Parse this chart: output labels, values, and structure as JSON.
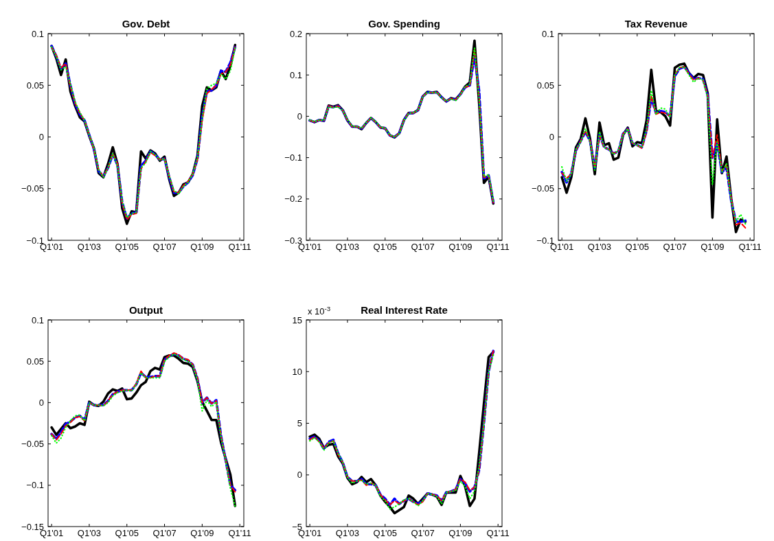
{
  "chart_data": [
    {
      "type": "line",
      "title": "Gov. Debt",
      "categories": [
        "Q1'01",
        null,
        null,
        null,
        null,
        null,
        null,
        null,
        "Q1'03",
        null,
        null,
        null,
        null,
        null,
        null,
        null,
        "Q1'05",
        null,
        null,
        null,
        null,
        null,
        null,
        null,
        "Q1'07",
        null,
        null,
        null,
        null,
        null,
        null,
        null,
        "Q1'09",
        null,
        null,
        null,
        null,
        null,
        null,
        null,
        "Q1'11"
      ],
      "ylim": [
        -0.1,
        0.1
      ],
      "yticks": [
        -0.1,
        -0.05,
        0,
        0.05,
        0.1
      ],
      "series": [
        {
          "color": "#000000",
          "line_style": "solid",
          "values": [
            0.088,
            0.076,
            0.06,
            0.075,
            0.044,
            0.03,
            0.019,
            0.015,
            0.001,
            -0.011,
            -0.035,
            -0.039,
            -0.026,
            -0.01,
            -0.026,
            -0.069,
            -0.084,
            -0.072,
            -0.073,
            -0.014,
            -0.021,
            -0.013,
            -0.016,
            -0.023,
            -0.019,
            -0.041,
            -0.057,
            -0.054,
            -0.046,
            -0.044,
            -0.036,
            -0.018,
            0.03,
            0.048,
            0.045,
            0.048,
            0.064,
            0.056,
            0.069,
            0.089,
            null
          ]
        },
        {
          "color": "#00ff00",
          "line_style": "dotted",
          "values": [
            0.087,
            0.078,
            0.065,
            0.068,
            0.051,
            0.034,
            0.024,
            0.016,
            0.002,
            -0.011,
            -0.032,
            -0.039,
            -0.03,
            -0.016,
            -0.028,
            -0.062,
            -0.078,
            -0.074,
            -0.073,
            -0.03,
            -0.025,
            -0.014,
            -0.017,
            -0.022,
            -0.021,
            -0.038,
            -0.052,
            -0.055,
            -0.048,
            -0.044,
            -0.036,
            -0.02,
            0.018,
            0.047,
            0.05,
            0.052,
            0.061,
            0.056,
            0.064,
            0.086,
            null
          ]
        },
        {
          "color": "#0000ff",
          "line_style": "dashed",
          "values": [
            0.088,
            0.078,
            0.066,
            0.071,
            0.05,
            0.032,
            0.022,
            0.016,
            0.002,
            -0.012,
            -0.033,
            -0.038,
            -0.03,
            -0.017,
            -0.027,
            -0.063,
            -0.079,
            -0.074,
            -0.073,
            -0.028,
            -0.023,
            -0.014,
            -0.017,
            -0.022,
            -0.021,
            -0.039,
            -0.054,
            -0.054,
            -0.048,
            -0.044,
            -0.037,
            -0.021,
            0.02,
            0.044,
            0.045,
            0.05,
            0.064,
            0.063,
            0.072,
            0.087,
            null
          ]
        },
        {
          "color": "#ff0000",
          "line_style": "dashed",
          "values": [
            0.087,
            0.079,
            0.067,
            0.071,
            0.049,
            0.033,
            0.023,
            0.016,
            0.002,
            -0.012,
            -0.032,
            -0.038,
            -0.03,
            -0.016,
            -0.026,
            -0.064,
            -0.08,
            -0.075,
            -0.074,
            -0.031,
            -0.024,
            -0.015,
            -0.018,
            -0.022,
            -0.021,
            -0.038,
            -0.053,
            -0.054,
            -0.047,
            -0.043,
            -0.036,
            -0.022,
            0.016,
            0.042,
            0.046,
            0.05,
            0.061,
            0.063,
            0.07,
            0.087,
            null
          ]
        }
      ]
    },
    {
      "type": "line",
      "title": "Gov. Spending",
      "categories": [
        "Q1'01",
        null,
        null,
        null,
        null,
        null,
        null,
        null,
        "Q1'03",
        null,
        null,
        null,
        null,
        null,
        null,
        null,
        "Q1'05",
        null,
        null,
        null,
        null,
        null,
        null,
        null,
        "Q1'07",
        null,
        null,
        null,
        null,
        null,
        null,
        null,
        "Q1'09",
        null,
        null,
        null,
        null,
        null,
        null,
        null,
        "Q1'11"
      ],
      "ylim": [
        -0.3,
        0.2
      ],
      "yticks": [
        -0.3,
        -0.2,
        -0.1,
        0,
        0.1,
        0.2
      ],
      "series": [
        {
          "color": "#000000",
          "line_style": "solid",
          "values": [
            -0.01,
            -0.014,
            -0.009,
            -0.011,
            0.026,
            0.023,
            0.027,
            0.015,
            -0.01,
            -0.025,
            -0.025,
            -0.031,
            -0.016,
            -0.004,
            -0.014,
            -0.027,
            -0.029,
            -0.046,
            -0.051,
            -0.041,
            -0.009,
            0.008,
            0.008,
            0.015,
            0.048,
            0.059,
            0.057,
            0.059,
            0.046,
            0.036,
            0.044,
            0.041,
            0.054,
            0.072,
            0.082,
            0.183,
            0.029,
            -0.161,
            -0.146,
            -0.211,
            null
          ]
        },
        {
          "color": "#00ff00",
          "line_style": "dotted",
          "values": [
            -0.009,
            -0.013,
            -0.009,
            -0.01,
            0.023,
            0.021,
            0.023,
            0.014,
            -0.008,
            -0.024,
            -0.025,
            -0.029,
            -0.015,
            -0.004,
            -0.013,
            -0.026,
            -0.029,
            -0.045,
            -0.05,
            -0.042,
            -0.01,
            0.007,
            0.009,
            0.015,
            0.047,
            0.058,
            0.057,
            0.058,
            0.045,
            0.037,
            0.042,
            0.038,
            0.052,
            0.072,
            0.078,
            0.165,
            0.04,
            -0.146,
            -0.141,
            -0.205,
            null
          ]
        },
        {
          "color": "#0000ff",
          "line_style": "dashed",
          "values": [
            -0.01,
            -0.014,
            -0.009,
            -0.011,
            0.024,
            0.022,
            0.025,
            0.014,
            -0.01,
            -0.025,
            -0.025,
            -0.03,
            -0.016,
            -0.004,
            -0.014,
            -0.027,
            -0.029,
            -0.046,
            -0.05,
            -0.041,
            -0.009,
            0.008,
            0.008,
            0.015,
            0.048,
            0.058,
            0.057,
            0.058,
            0.046,
            0.036,
            0.043,
            0.04,
            0.053,
            0.07,
            0.075,
            0.145,
            0.06,
            -0.15,
            -0.143,
            -0.208,
            null
          ]
        },
        {
          "color": "#ff0000",
          "line_style": "dashed",
          "values": [
            -0.01,
            -0.014,
            -0.009,
            -0.011,
            0.025,
            0.022,
            0.025,
            0.014,
            -0.01,
            -0.025,
            -0.025,
            -0.03,
            -0.016,
            -0.004,
            -0.014,
            -0.027,
            -0.029,
            -0.046,
            -0.05,
            -0.041,
            -0.009,
            0.008,
            0.008,
            0.015,
            0.048,
            0.058,
            0.057,
            0.058,
            0.046,
            0.036,
            0.043,
            0.04,
            0.053,
            0.071,
            0.073,
            0.16,
            0.045,
            -0.148,
            -0.144,
            -0.209,
            null
          ]
        }
      ]
    },
    {
      "type": "line",
      "title": "Tax Revenue",
      "categories": [
        "Q1'01",
        null,
        null,
        null,
        null,
        null,
        null,
        null,
        "Q1'03",
        null,
        null,
        null,
        null,
        null,
        null,
        null,
        "Q1'05",
        null,
        null,
        null,
        null,
        null,
        null,
        null,
        "Q1'07",
        null,
        null,
        null,
        null,
        null,
        null,
        null,
        "Q1'09",
        null,
        null,
        null,
        null,
        null,
        null,
        null,
        "Q1'11"
      ],
      "ylim": [
        -0.1,
        0.1
      ],
      "yticks": [
        -0.1,
        -0.05,
        0,
        0.05,
        0.1
      ],
      "series": [
        {
          "color": "#000000",
          "line_style": "solid",
          "values": [
            -0.039,
            -0.054,
            -0.039,
            -0.01,
            -0.002,
            0.018,
            -0.002,
            -0.036,
            0.014,
            -0.008,
            -0.006,
            -0.022,
            -0.02,
            0.002,
            0.009,
            -0.009,
            -0.005,
            -0.006,
            0.016,
            0.065,
            0.025,
            0.024,
            0.02,
            0.011,
            0.067,
            0.07,
            0.071,
            0.062,
            0.057,
            0.061,
            0.06,
            0.042,
            -0.078,
            0.017,
            -0.035,
            -0.019,
            -0.06,
            -0.092,
            -0.08,
            -0.082,
            null
          ]
        },
        {
          "color": "#00ff00",
          "line_style": "dotted",
          "values": [
            -0.029,
            -0.043,
            -0.036,
            -0.012,
            -0.005,
            0.008,
            -0.005,
            -0.032,
            0.005,
            -0.01,
            -0.012,
            -0.017,
            -0.013,
            0.002,
            0.008,
            -0.006,
            -0.008,
            -0.01,
            0.008,
            0.045,
            0.022,
            0.028,
            0.027,
            0.019,
            0.06,
            0.067,
            0.068,
            0.06,
            0.053,
            0.057,
            0.055,
            0.038,
            -0.046,
            -0.005,
            -0.034,
            -0.026,
            -0.062,
            -0.082,
            -0.075,
            -0.084,
            null
          ]
        },
        {
          "color": "#0000ff",
          "line_style": "dashed",
          "values": [
            -0.034,
            -0.044,
            -0.035,
            -0.013,
            -0.004,
            0.005,
            -0.004,
            -0.03,
            0.002,
            -0.01,
            -0.012,
            -0.016,
            -0.014,
            0.003,
            0.008,
            -0.006,
            -0.008,
            -0.01,
            0.006,
            0.038,
            0.023,
            0.025,
            0.024,
            0.02,
            0.059,
            0.066,
            0.068,
            0.062,
            0.056,
            0.057,
            0.056,
            0.04,
            -0.02,
            -0.006,
            -0.034,
            -0.03,
            -0.062,
            -0.082,
            -0.082,
            -0.081,
            null
          ]
        },
        {
          "color": "#ff0000",
          "line_style": "dashed",
          "values": [
            -0.035,
            -0.04,
            -0.036,
            -0.013,
            -0.004,
            0.006,
            -0.004,
            -0.03,
            0.001,
            -0.01,
            -0.012,
            -0.016,
            -0.014,
            0.003,
            0.008,
            -0.006,
            -0.008,
            -0.011,
            0.005,
            0.04,
            0.022,
            0.024,
            0.023,
            0.02,
            0.06,
            0.067,
            0.068,
            0.061,
            0.055,
            0.057,
            0.055,
            0.04,
            -0.02,
            0.002,
            -0.033,
            -0.028,
            -0.06,
            -0.085,
            -0.083,
            -0.088,
            null
          ]
        }
      ]
    },
    {
      "type": "line",
      "title": "Output",
      "categories": [
        "Q1'01",
        null,
        null,
        null,
        null,
        null,
        null,
        null,
        "Q1'03",
        null,
        null,
        null,
        null,
        null,
        null,
        null,
        "Q1'05",
        null,
        null,
        null,
        null,
        null,
        null,
        null,
        "Q1'07",
        null,
        null,
        null,
        null,
        null,
        null,
        null,
        "Q1'09",
        null,
        null,
        null,
        null,
        null,
        null,
        null,
        "Q1'11"
      ],
      "ylim": [
        -0.15,
        0.1
      ],
      "yticks": [
        -0.15,
        -0.1,
        -0.05,
        0,
        0.05,
        0.1
      ],
      "series": [
        {
          "color": "#000000",
          "line_style": "solid",
          "values": [
            -0.03,
            -0.039,
            -0.032,
            -0.025,
            -0.031,
            -0.029,
            -0.025,
            -0.027,
            0.001,
            -0.003,
            -0.004,
            0.001,
            0.011,
            0.016,
            0.014,
            0.017,
            0.004,
            0.005,
            0.012,
            0.021,
            0.025,
            0.038,
            0.042,
            0.04,
            0.055,
            0.057,
            0.057,
            0.053,
            0.048,
            0.047,
            0.043,
            0.026,
            0.001,
            -0.01,
            -0.021,
            -0.021,
            -0.048,
            -0.068,
            -0.087,
            -0.125,
            null
          ]
        },
        {
          "color": "#00ff00",
          "line_style": "dotted",
          "values": [
            -0.04,
            -0.049,
            -0.043,
            -0.03,
            -0.022,
            -0.016,
            -0.015,
            -0.022,
            0.0,
            -0.003,
            -0.003,
            -0.004,
            0.0,
            0.008,
            0.012,
            0.014,
            0.015,
            0.014,
            0.022,
            0.036,
            0.03,
            0.03,
            0.03,
            0.03,
            0.05,
            0.055,
            0.059,
            0.056,
            0.052,
            0.05,
            0.045,
            0.027,
            -0.01,
            0.003,
            -0.005,
            0.001,
            -0.042,
            -0.07,
            -0.104,
            -0.125,
            null
          ]
        },
        {
          "color": "#0000ff",
          "line_style": "dashed",
          "values": [
            -0.038,
            -0.044,
            -0.036,
            -0.026,
            -0.023,
            -0.018,
            -0.016,
            -0.021,
            0.0,
            -0.003,
            -0.003,
            -0.003,
            0.002,
            0.01,
            0.013,
            0.015,
            0.015,
            0.015,
            0.022,
            0.036,
            0.031,
            0.031,
            0.032,
            0.032,
            0.052,
            0.056,
            0.059,
            0.057,
            0.053,
            0.051,
            0.046,
            0.029,
            0.0,
            0.006,
            -0.001,
            0.003,
            -0.04,
            -0.07,
            -0.1,
            -0.106,
            null
          ]
        },
        {
          "color": "#ff0000",
          "line_style": "dashed",
          "values": [
            -0.038,
            -0.045,
            -0.038,
            -0.028,
            -0.024,
            -0.018,
            -0.017,
            -0.022,
            0.0,
            -0.003,
            -0.003,
            -0.004,
            0.002,
            0.01,
            0.013,
            0.015,
            0.015,
            0.015,
            0.023,
            0.038,
            0.03,
            0.03,
            0.032,
            0.032,
            0.052,
            0.057,
            0.06,
            0.058,
            0.053,
            0.052,
            0.046,
            0.03,
            0.0,
            0.006,
            -0.001,
            0.002,
            -0.04,
            -0.07,
            -0.1,
            -0.108,
            null
          ]
        }
      ]
    },
    {
      "type": "line",
      "title": "Real Interest Rate",
      "annotations": [
        "x 10$^{-3}$"
      ],
      "categories": [
        "Q1'01",
        null,
        null,
        null,
        null,
        null,
        null,
        null,
        "Q1'03",
        null,
        null,
        null,
        null,
        null,
        null,
        null,
        "Q1'05",
        null,
        null,
        null,
        null,
        null,
        null,
        null,
        "Q1'07",
        null,
        null,
        null,
        null,
        null,
        null,
        null,
        "Q1'09",
        null,
        null,
        null,
        null,
        null,
        null,
        null,
        "Q1'11"
      ],
      "ylim": [
        -5,
        15
      ],
      "yticks": [
        -5,
        0,
        5,
        10,
        15
      ],
      "series": [
        {
          "color": "#000000",
          "line_style": "solid",
          "values": [
            3.7,
            3.9,
            3.5,
            2.6,
            2.9,
            3.0,
            1.8,
            1.1,
            -0.3,
            -0.9,
            -0.7,
            -0.2,
            -0.7,
            -0.4,
            -1.0,
            -2.0,
            -2.6,
            -3.1,
            -3.7,
            -3.4,
            -3.1,
            -2.0,
            -2.3,
            -2.8,
            -2.3,
            -1.8,
            -1.9,
            -2.1,
            -2.9,
            -1.7,
            -1.7,
            -1.7,
            -0.1,
            -1.1,
            -3.0,
            -2.3,
            2.2,
            6.9,
            11.4,
            11.9,
            null
          ]
        },
        {
          "color": "#00ff00",
          "line_style": "dotted",
          "values": [
            3.3,
            3.6,
            3.2,
            2.4,
            3.1,
            3.3,
            2.1,
            1.2,
            -0.2,
            -0.8,
            -0.6,
            -0.5,
            -0.9,
            -0.8,
            -1.0,
            -2.1,
            -2.5,
            -3.3,
            -3.1,
            -2.8,
            -2.4,
            -2.3,
            -2.6,
            -3.0,
            -2.5,
            -1.8,
            -1.9,
            -2.1,
            -2.8,
            -1.7,
            -1.6,
            -1.5,
            -0.6,
            -1.1,
            -2.3,
            -1.6,
            0.9,
            4.9,
            10.0,
            11.6,
            null
          ]
        },
        {
          "color": "#0000ff",
          "line_style": "dashed",
          "values": [
            3.5,
            3.7,
            3.3,
            2.5,
            3.2,
            3.4,
            2.1,
            1.2,
            -0.2,
            -0.6,
            -0.6,
            -0.4,
            -0.9,
            -0.9,
            -1.0,
            -1.9,
            -2.3,
            -2.9,
            -2.3,
            -2.8,
            -2.5,
            -2.3,
            -2.6,
            -2.8,
            -2.5,
            -1.8,
            -1.9,
            -2.0,
            -2.5,
            -1.7,
            -1.6,
            -1.4,
            -0.4,
            -0.8,
            -1.6,
            -1.2,
            0.5,
            5.0,
            10.0,
            12.0,
            null
          ]
        },
        {
          "color": "#ff0000",
          "line_style": "dashed",
          "values": [
            3.4,
            3.7,
            3.2,
            2.6,
            3.1,
            3.3,
            2.0,
            1.2,
            -0.2,
            -0.6,
            -0.6,
            -0.5,
            -1.0,
            -0.8,
            -1.0,
            -1.9,
            -2.4,
            -2.9,
            -2.5,
            -2.8,
            -2.5,
            -2.3,
            -2.6,
            -2.9,
            -2.6,
            -1.8,
            -1.9,
            -2.0,
            -2.5,
            -1.7,
            -1.6,
            -1.4,
            -0.4,
            -0.7,
            -1.5,
            -1.2,
            0.5,
            5.0,
            10.0,
            12.0,
            null
          ]
        }
      ]
    }
  ]
}
